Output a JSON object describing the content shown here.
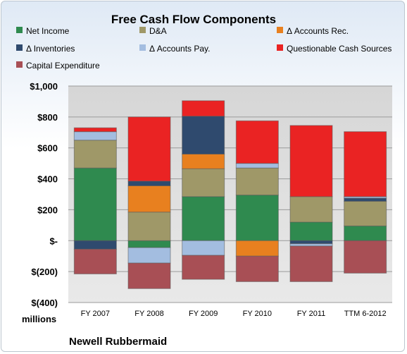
{
  "chart_data": {
    "type": "bar",
    "stacked": true,
    "title": "Free Cash Flow Components",
    "ylabel": "millions",
    "footer": "Newell Rubbermaid",
    "ylim": [
      -400,
      1000
    ],
    "yticks": [
      {
        "value": 1000,
        "label": "$1,000"
      },
      {
        "value": 800,
        "label": "$800"
      },
      {
        "value": 600,
        "label": "$600"
      },
      {
        "value": 400,
        "label": "$400"
      },
      {
        "value": 200,
        "label": "$200"
      },
      {
        "value": 0,
        "label": "$-"
      },
      {
        "value": -200,
        "label": "$(200)"
      },
      {
        "value": -400,
        "label": "$(400)"
      }
    ],
    "grid": true,
    "legend": "top",
    "categories": [
      "FY 2007",
      "FY 2008",
      "FY 2009",
      "FY 2010",
      "FY 2011",
      "TTM 6-2012"
    ],
    "series": [
      {
        "name": "Net Income",
        "color": "#2f8a4f",
        "values": [
          470,
          -45,
          285,
          295,
          120,
          95
        ]
      },
      {
        "name": "D&A",
        "color": "#9f9868",
        "values": [
          180,
          185,
          180,
          175,
          165,
          160
        ]
      },
      {
        "name": "Δ Accounts Rec.",
        "color": "#e8801f",
        "values": [
          0,
          170,
          95,
          -100,
          0,
          0
        ]
      },
      {
        "name": "Δ Inventories",
        "color": "#2f4a6e",
        "values": [
          -55,
          30,
          245,
          0,
          -20,
          20
        ]
      },
      {
        "name": "Δ Accounts Pay.",
        "color": "#a3bde0",
        "values": [
          55,
          -100,
          -95,
          30,
          -15,
          10
        ]
      },
      {
        "name": "Questionable Cash Sources",
        "color": "#ea2323",
        "values": [
          25,
          415,
          100,
          275,
          460,
          420
        ]
      },
      {
        "name": "Capital Expenditure",
        "color": "#a84f55",
        "values": [
          -160,
          -165,
          -155,
          -165,
          -230,
          -210
        ]
      }
    ]
  }
}
